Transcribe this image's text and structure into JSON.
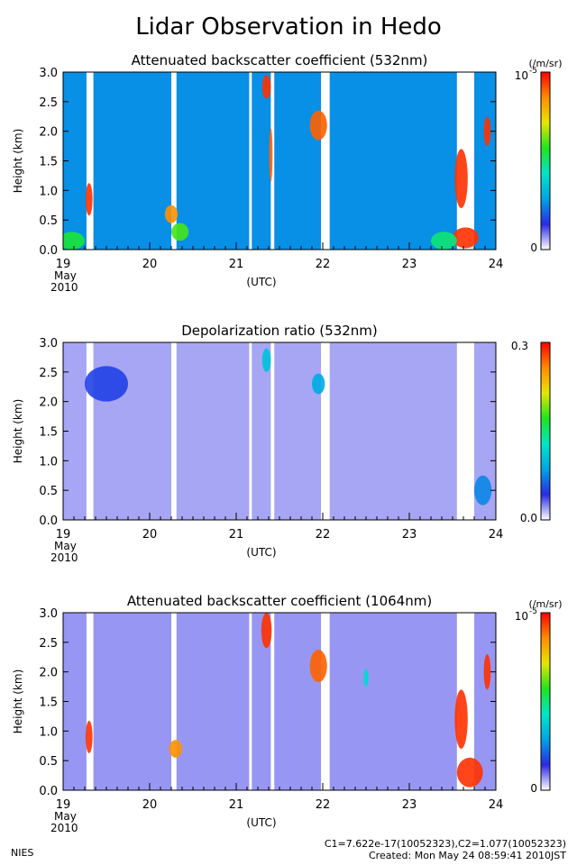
{
  "title": "Lidar Observation in Hedo",
  "footer": {
    "org": "NIES",
    "constants": "C1=7.622e-17(10052323),C2=1.077(10052323)",
    "created": "Created: Mon May 24 08:59:41 2010JST"
  },
  "colors": {
    "scale": [
      "#ffffff",
      "#2a2ae6",
      "#00a5e6",
      "#00e6c8",
      "#1ee61e",
      "#e6e600",
      "#ff8c00",
      "#ff0000"
    ]
  },
  "chart_data": [
    {
      "type": "heatmap",
      "title": "Attenuated backscatter coefficient (532nm)",
      "ylabel": "Height (km)",
      "xlabel": "(UTC)",
      "x_ticks": [
        "19",
        "20",
        "21",
        "22",
        "23",
        "24"
      ],
      "x_tick_note": [
        "May",
        "2010"
      ],
      "y_ticks": [
        "0.0",
        "0.5",
        "1.0",
        "1.5",
        "2.0",
        "2.5",
        "3.0"
      ],
      "xlim": [
        19,
        24
      ],
      "ylim": [
        0,
        3
      ],
      "colorbar": {
        "min_label": "0",
        "max_label": "10",
        "max_exp": "-5",
        "unit": "(/m/sr)"
      },
      "background_level": 0.26,
      "gaps": [
        [
          19.27,
          19.35
        ],
        [
          20.25,
          20.31
        ],
        [
          21.15,
          21.18
        ],
        [
          21.4,
          21.44
        ],
        [
          21.98,
          22.08
        ],
        [
          23.55,
          23.75
        ]
      ],
      "features": [
        {
          "x": 19.3,
          "y": 0.85,
          "w": 0.08,
          "h": 0.55,
          "level": 0.95
        },
        {
          "x": 19.1,
          "y": 0.15,
          "w": 0.3,
          "h": 0.3,
          "level": 0.55
        },
        {
          "x": 20.25,
          "y": 0.6,
          "w": 0.15,
          "h": 0.3,
          "level": 0.85
        },
        {
          "x": 20.35,
          "y": 0.3,
          "w": 0.2,
          "h": 0.3,
          "level": 0.6
        },
        {
          "x": 21.35,
          "y": 2.75,
          "w": 0.1,
          "h": 0.4,
          "level": 0.95
        },
        {
          "x": 21.4,
          "y": 1.6,
          "w": 0.04,
          "h": 0.9,
          "level": 0.9
        },
        {
          "x": 21.95,
          "y": 2.1,
          "w": 0.2,
          "h": 0.5,
          "level": 0.9
        },
        {
          "x": 23.6,
          "y": 1.2,
          "w": 0.15,
          "h": 1.0,
          "level": 0.95
        },
        {
          "x": 23.65,
          "y": 0.2,
          "w": 0.3,
          "h": 0.35,
          "level": 0.95
        },
        {
          "x": 23.4,
          "y": 0.15,
          "w": 0.3,
          "h": 0.3,
          "level": 0.5
        },
        {
          "x": 23.9,
          "y": 2.0,
          "w": 0.08,
          "h": 0.5,
          "level": 0.95
        }
      ]
    },
    {
      "type": "heatmap",
      "title": "Depolarization ratio (532nm)",
      "ylabel": "Height (km)",
      "xlabel": "(UTC)",
      "x_ticks": [
        "19",
        "20",
        "21",
        "22",
        "23",
        "24"
      ],
      "x_tick_note": [
        "May",
        "2010"
      ],
      "y_ticks": [
        "0.0",
        "0.5",
        "1.0",
        "1.5",
        "2.0",
        "2.5",
        "3.0"
      ],
      "xlim": [
        19,
        24
      ],
      "ylim": [
        0,
        3
      ],
      "colorbar": {
        "min_label": "0.0",
        "max_label": "0.3",
        "max_exp": "",
        "unit": ""
      },
      "background_level": 0.06,
      "gaps": [
        [
          19.27,
          19.35
        ],
        [
          20.25,
          20.31
        ],
        [
          21.15,
          21.18
        ],
        [
          21.4,
          21.44
        ],
        [
          21.98,
          22.08
        ],
        [
          23.55,
          23.75
        ]
      ],
      "features": [
        {
          "x": 19.5,
          "y": 2.3,
          "w": 0.5,
          "h": 0.6,
          "level": 0.17
        },
        {
          "x": 21.35,
          "y": 2.7,
          "w": 0.1,
          "h": 0.4,
          "level": 0.35
        },
        {
          "x": 21.95,
          "y": 2.3,
          "w": 0.15,
          "h": 0.35,
          "level": 0.3
        },
        {
          "x": 23.85,
          "y": 0.5,
          "w": 0.2,
          "h": 0.5,
          "level": 0.25
        }
      ]
    },
    {
      "type": "heatmap",
      "title": "Attenuated backscatter coefficient (1064nm)",
      "ylabel": "Height (km)",
      "xlabel": "(UTC)",
      "x_ticks": [
        "19",
        "20",
        "21",
        "22",
        "23",
        "24"
      ],
      "x_tick_note": [
        "May",
        "2010"
      ],
      "y_ticks": [
        "0.0",
        "0.5",
        "1.0",
        "1.5",
        "2.0",
        "2.5",
        "3.0"
      ],
      "xlim": [
        19,
        24
      ],
      "ylim": [
        0,
        3
      ],
      "colorbar": {
        "min_label": "0",
        "max_label": "10",
        "max_exp": "-5",
        "unit": "(/m/sr)"
      },
      "background_level": 0.07,
      "gaps": [
        [
          19.27,
          19.35
        ],
        [
          20.25,
          20.31
        ],
        [
          21.15,
          21.18
        ],
        [
          21.4,
          21.44
        ],
        [
          21.98,
          22.08
        ],
        [
          23.55,
          23.75
        ]
      ],
      "features": [
        {
          "x": 19.3,
          "y": 0.9,
          "w": 0.08,
          "h": 0.55,
          "level": 0.95
        },
        {
          "x": 21.35,
          "y": 2.7,
          "w": 0.12,
          "h": 0.6,
          "level": 0.95
        },
        {
          "x": 21.95,
          "y": 2.1,
          "w": 0.2,
          "h": 0.55,
          "level": 0.9
        },
        {
          "x": 23.7,
          "y": 0.3,
          "w": 0.3,
          "h": 0.5,
          "level": 0.95
        },
        {
          "x": 23.6,
          "y": 1.2,
          "w": 0.15,
          "h": 1.0,
          "level": 0.95
        },
        {
          "x": 23.9,
          "y": 2.0,
          "w": 0.08,
          "h": 0.6,
          "level": 0.95
        },
        {
          "x": 20.3,
          "y": 0.7,
          "w": 0.15,
          "h": 0.3,
          "level": 0.85
        },
        {
          "x": 22.5,
          "y": 1.9,
          "w": 0.06,
          "h": 0.3,
          "level": 0.4
        }
      ]
    }
  ]
}
